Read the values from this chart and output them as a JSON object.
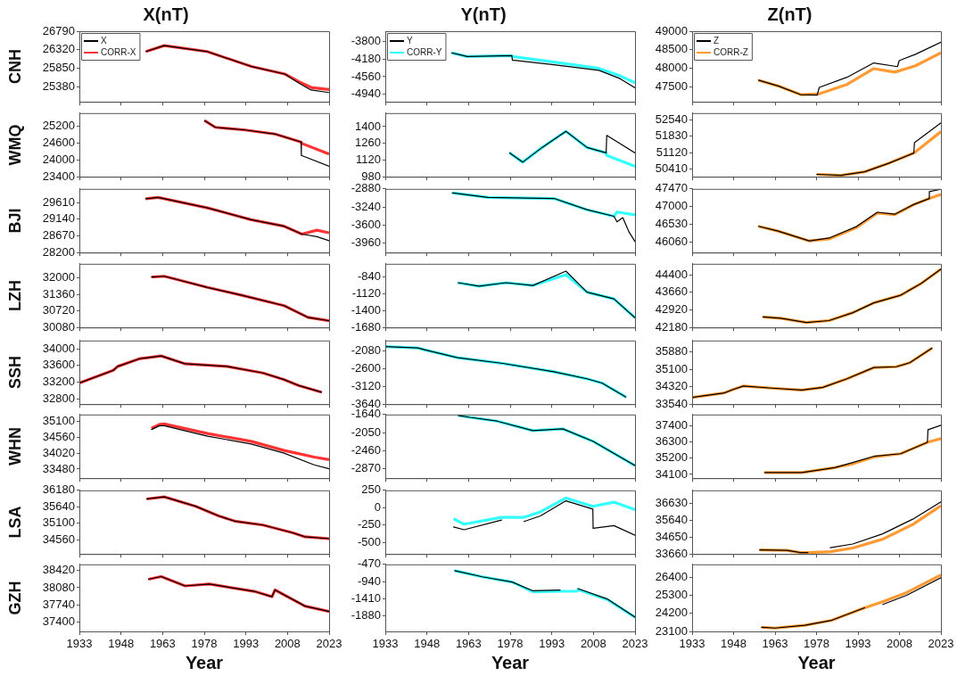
{
  "chart_data": [
    {
      "type": "line",
      "title": "X(nT)",
      "ylabel": "CNH",
      "xlim": [
        1933,
        2023
      ],
      "xticks": [
        1933,
        1948,
        1963,
        1978,
        1993,
        2008,
        2023
      ],
      "ylim": [
        25000,
        26790
      ],
      "yticks": [
        25380,
        25850,
        26320,
        26790
      ],
      "tick_labels": "y",
      "marker": "none",
      "legend": "top left",
      "series": [
        {
          "name": "X",
          "color": "#000000",
          "x": [
            1957,
            1963.6,
            1979,
            1995,
            2007,
            2012,
            2016.5,
            2023
          ],
          "values": [
            26275,
            26426,
            26275,
            25896,
            25706,
            25480,
            25300,
            25236
          ]
        },
        {
          "name": "CORR-X",
          "color": "#ff3333",
          "x": [
            1957,
            1963.6,
            1979,
            1995,
            2007,
            2012,
            2016.5,
            2023
          ],
          "values": [
            26275,
            26426,
            26275,
            25896,
            25706,
            25517,
            25365,
            25312
          ]
        }
      ]
    },
    {
      "type": "line",
      "title": "Y(nT)",
      "xlim": [
        1933,
        2023
      ],
      "xticks": [
        1933,
        1948,
        1963,
        1978,
        1993,
        2008,
        2023
      ],
      "ylim": [
        -5100,
        -3585
      ],
      "yticks": [
        -4940,
        -4560,
        -4180,
        -3800
      ],
      "tick_labels": "y",
      "marker": "none",
      "legend": "top left",
      "series": [
        {
          "name": "Y",
          "color": "#000000",
          "x": [
            1956.9,
            1962.5,
            1978.6,
            1978.8,
            1993.8,
            2010,
            2017.6,
            2023
          ],
          "values": [
            -4049,
            -4127,
            -4109,
            -4204,
            -4305,
            -4424,
            -4602,
            -4798
          ]
        },
        {
          "name": "CORR-Y",
          "color": "#33ffff",
          "x": [
            1956.9,
            1962.5,
            1978.6,
            1978.8,
            1993.8,
            2010,
            2017.6,
            2023
          ],
          "values": [
            -4049,
            -4127,
            -4109,
            -4127,
            -4246,
            -4382,
            -4543,
            -4691
          ]
        }
      ]
    },
    {
      "type": "line",
      "title": "Z(nT)",
      "xlim": [
        1933,
        2023
      ],
      "xticks": [
        1933,
        1948,
        1963,
        1978,
        1993,
        2008,
        2023
      ],
      "ylim": [
        47095,
        49000
      ],
      "yticks": [
        47500,
        48000,
        48500,
        49000
      ],
      "tick_labels": "y",
      "marker": "none",
      "legend": "top left",
      "series": [
        {
          "name": "Z",
          "color": "#000000",
          "x": [
            1957,
            1964.1,
            1972.2,
            1978.2,
            1979,
            1989,
            1998.7,
            2007.3,
            2007.9,
            2013.8,
            2023
          ],
          "values": [
            47679,
            47524,
            47291,
            47275,
            47485,
            47757,
            48145,
            48044,
            48207,
            48378,
            48705
          ]
        },
        {
          "name": "CORR-Z",
          "color": "#ff9933",
          "x": [
            1957,
            1964.1,
            1972.2,
            1978.7,
            1989,
            1998.7,
            2006.3,
            2013.8,
            2023
          ],
          "values": [
            47679,
            47524,
            47291,
            47306,
            47563,
            47990,
            47897,
            48068,
            48417
          ]
        }
      ]
    },
    {
      "type": "line",
      "ylabel": "WMQ",
      "xlim": [
        1933,
        2023
      ],
      "xticks": [
        1933,
        1948,
        1963,
        1978,
        1993,
        2008,
        2023
      ],
      "ylim": [
        23400,
        25680
      ],
      "yticks": [
        23400,
        24000,
        24600,
        25200
      ],
      "tick_labels": "y",
      "marker": "none",
      "series": [
        {
          "color": "#000000",
          "x": [
            1978.1,
            1982,
            1992.7,
            2003.5,
            2012.9,
            2013,
            2023
          ],
          "values": [
            25411,
            25171,
            25075,
            24930,
            24643,
            24163,
            23779
          ]
        },
        {
          "color": "#ff3333",
          "x": [
            1978.1,
            1982,
            1992.7,
            2003.5,
            2012.9,
            2013,
            2023
          ],
          "values": [
            25411,
            25171,
            25075,
            24930,
            24643,
            24600,
            24211
          ]
        }
      ]
    },
    {
      "type": "line",
      "xlim": [
        1933,
        2023
      ],
      "xticks": [
        1933,
        1948,
        1963,
        1978,
        1993,
        2008,
        2023
      ],
      "ylim": [
        980,
        1513
      ],
      "yticks": [
        980,
        1120,
        1260,
        1400
      ],
      "tick_labels": "y",
      "marker": "none",
      "series": [
        {
          "color": "#000000",
          "x": [
            1977.8,
            1982.5,
            1989.5,
            1998.1,
            2005.7,
            2012.6,
            2012.8,
            2023
          ],
          "values": [
            1180,
            1102,
            1225,
            1360,
            1225,
            1180,
            1326,
            1180
          ]
        },
        {
          "color": "#33ffff",
          "x": [
            1977.8,
            1982.5,
            1989.5,
            1998.1,
            2005.7,
            2012.6,
            2012.8,
            2023
          ],
          "values": [
            1180,
            1102,
            1225,
            1360,
            1225,
            1180,
            1158,
            1068
          ]
        }
      ]
    },
    {
      "type": "line",
      "xlim": [
        1933,
        2023
      ],
      "xticks": [
        1933,
        1948,
        1963,
        1978,
        1993,
        2008,
        2023
      ],
      "ylim": [
        50070,
        52845
      ],
      "yticks": [
        50410,
        51120,
        51830,
        52540
      ],
      "tick_labels": "y",
      "marker": "none",
      "series": [
        {
          "color": "#000000",
          "x": [
            1978.1,
            1986.8,
            1995.4,
            2004.1,
            2013.2,
            2013.4,
            2023
          ],
          "values": [
            50175,
            50130,
            50287,
            50657,
            51105,
            51554,
            52417
          ]
        },
        {
          "color": "#ff9933",
          "x": [
            1978.1,
            1986.8,
            1995.4,
            2004.1,
            2013.2,
            2013.4,
            2023
          ],
          "values": [
            50175,
            50130,
            50287,
            50657,
            51105,
            51120,
            52036
          ]
        }
      ]
    },
    {
      "type": "line",
      "ylabel": "BJI",
      "xlim": [
        1933,
        2023
      ],
      "xticks": [
        1933,
        1948,
        1963,
        1978,
        1993,
        2008,
        2023
      ],
      "ylim": [
        28200,
        30000
      ],
      "yticks": [
        28200,
        28670,
        29140,
        29610
      ],
      "tick_labels": "y",
      "marker": "none",
      "series": [
        {
          "color": "#000000",
          "x": [
            1956.9,
            1961.4,
            1979.2,
            1994.9,
            2006.8,
            2013.2,
            2018.6,
            2023
          ],
          "values": [
            29721,
            29758,
            29462,
            29129,
            28944,
            28722,
            28648,
            28537
          ]
        },
        {
          "color": "#ff3333",
          "x": [
            1956.9,
            1961.4,
            1979.2,
            1994.9,
            2006.8,
            2013.2,
            2018.6,
            2023
          ],
          "values": [
            29721,
            29758,
            29462,
            29129,
            28944,
            28722,
            28833,
            28759
          ]
        }
      ]
    },
    {
      "type": "line",
      "xlim": [
        1933,
        2023
      ],
      "xticks": [
        1933,
        1948,
        1963,
        1978,
        1993,
        2008,
        2023
      ],
      "ylim": [
        -4150,
        -2880
      ],
      "yticks": [
        -3960,
        -3600,
        -3240,
        -2880
      ],
      "tick_labels": "y",
      "marker": "none",
      "series": [
        {
          "color": "#000000",
          "x": [
            1957.1,
            1970,
            1993.8,
            2005.7,
            2015.4,
            2016.5,
            2018.6,
            2020.8,
            2023
          ],
          "values": [
            -2959,
            -3049,
            -3071,
            -3296,
            -3426,
            -3538,
            -3454,
            -3735,
            -3932
          ]
        },
        {
          "color": "#33ffff",
          "x": [
            1957.1,
            1970,
            1993.8,
            2005.7,
            2015.4,
            2016.5,
            2018.6,
            2020.8,
            2023
          ],
          "values": [
            -2959,
            -3049,
            -3071,
            -3296,
            -3426,
            -3341,
            -3360,
            -3380,
            -3398
          ]
        }
      ]
    },
    {
      "type": "line",
      "xlim": [
        1933,
        2023
      ],
      "xticks": [
        1933,
        1948,
        1963,
        1978,
        1993,
        2008,
        2023
      ],
      "ylim": [
        45790,
        47470
      ],
      "yticks": [
        46060,
        46530,
        47000,
        47470
      ],
      "tick_labels": "y",
      "marker": "none",
      "series": [
        {
          "color": "#000000",
          "x": [
            1957,
            1964.1,
            1975.4,
            1982.5,
            1992.2,
            2000,
            2006.3,
            2013.3,
            2018.6,
            2018.8,
            2023
          ],
          "values": [
            46483,
            46357,
            46097,
            46172,
            46468,
            46854,
            46802,
            47062,
            47210,
            47396,
            47460
          ]
        },
        {
          "color": "#ff9933",
          "x": [
            1957,
            1964.1,
            1975.4,
            1982.5,
            1992.2,
            2000,
            2006.3,
            2013.3,
            2018.6,
            2023
          ],
          "values": [
            46483,
            46357,
            46097,
            46150,
            46440,
            46830,
            46790,
            47062,
            47210,
            47322
          ]
        }
      ]
    },
    {
      "type": "line",
      "ylabel": "LZH",
      "xlim": [
        1933,
        2023
      ],
      "xticks": [
        1933,
        1948,
        1963,
        1978,
        1993,
        2008,
        2023
      ],
      "ylim": [
        30080,
        32540
      ],
      "yticks": [
        30080,
        30720,
        31360,
        32000
      ],
      "tick_labels": "y",
      "marker": "none",
      "series": [
        {
          "color": "#000000",
          "x": [
            1959,
            1963.6,
            1979.2,
            1991.6,
            2006.8,
            2015.4,
            2023
          ],
          "values": [
            32030,
            32060,
            31627,
            31325,
            30921,
            30468,
            30337
          ]
        },
        {
          "color": "#ff3333",
          "x": [
            1959,
            1963.6,
            1979.2,
            1991.6,
            2006.8,
            2015.4,
            2023
          ],
          "values": [
            32030,
            32060,
            31627,
            31325,
            30921,
            30468,
            30337
          ]
        }
      ]
    },
    {
      "type": "line",
      "xlim": [
        1933,
        2023
      ],
      "xticks": [
        1933,
        1948,
        1963,
        1978,
        1993,
        2008,
        2023
      ],
      "ylim": [
        -1680,
        -630
      ],
      "yticks": [
        -1680,
        -1400,
        -1120,
        -840
      ],
      "tick_labels": "y",
      "marker": "none",
      "series": [
        {
          "color": "#000000",
          "x": [
            1959.2,
            1966.8,
            1976.5,
            1986.2,
            1998.1,
            2005.7,
            2015.4,
            2023
          ],
          "values": [
            -942,
            -1000,
            -942,
            -987,
            -751,
            -1098,
            -1209,
            -1519
          ]
        },
        {
          "color": "#33ffff",
          "x": [
            1959.2,
            1966.8,
            1976.5,
            1986.2,
            1998.1,
            2005.7,
            2015.4,
            2023
          ],
          "values": [
            -942,
            -1000,
            -942,
            -987,
            -809,
            -1098,
            -1209,
            -1519
          ]
        }
      ]
    },
    {
      "type": "line",
      "xlim": [
        1933,
        2023
      ],
      "xticks": [
        1933,
        1948,
        1963,
        1978,
        1993,
        2008,
        2023
      ],
      "ylim": [
        42180,
        44860
      ],
      "yticks": [
        42180,
        42920,
        43660,
        44400
      ],
      "tick_labels": "y",
      "marker": "none",
      "series": [
        {
          "color": "#000000",
          "x": [
            1958.6,
            1965.1,
            1974.3,
            1982.5,
            1991.1,
            1998.7,
            2008.4,
            2016,
            2023
          ],
          "values": [
            42624,
            42565,
            42387,
            42470,
            42802,
            43216,
            43536,
            44045,
            44637
          ]
        },
        {
          "color": "#ff9933",
          "x": [
            1958.6,
            1965.1,
            1974.3,
            1982.5,
            1991.1,
            1998.7,
            2008.4,
            2016,
            2023
          ],
          "values": [
            42624,
            42565,
            42387,
            42470,
            42802,
            43216,
            43536,
            44045,
            44637
          ]
        }
      ]
    },
    {
      "type": "line",
      "ylabel": "SSH",
      "xlim": [
        1933,
        2023
      ],
      "xticks": [
        1933,
        1948,
        1963,
        1978,
        1993,
        2008,
        2023
      ],
      "ylim": [
        32670,
        34200
      ],
      "yticks": [
        32800,
        33200,
        33600,
        34000
      ],
      "tick_labels": "y",
      "marker": "none",
      "series": [
        {
          "color": "#000000",
          "x": [
            1933,
            1945.2,
            1946.8,
            1954.9,
            1962.5,
            1971.1,
            1986.2,
            1999.2,
            2006.8,
            2012.2,
            2020.3
          ],
          "values": [
            33178,
            33482,
            33577,
            33766,
            33829,
            33640,
            33577,
            33419,
            33260,
            33115,
            32957
          ]
        },
        {
          "color": "#ff3333",
          "x": [
            1933,
            1945.2,
            1946.8,
            1954.9,
            1962.5,
            1971.1,
            1986.2,
            1999.2,
            2006.8,
            2012.2,
            2020.3
          ],
          "values": [
            33178,
            33482,
            33577,
            33766,
            33829,
            33640,
            33577,
            33419,
            33260,
            33115,
            32957
          ]
        }
      ]
    },
    {
      "type": "line",
      "xlim": [
        1933,
        2023
      ],
      "xticks": [
        1933,
        1948,
        1963,
        1978,
        1993,
        2008,
        2023
      ],
      "ylim": [
        -3640,
        -1780
      ],
      "yticks": [
        -3640,
        -3120,
        -2600,
        -2080
      ],
      "tick_labels": "y",
      "marker": "none",
      "series": [
        {
          "color": "#000000",
          "x": [
            1933,
            1944.7,
            1947.4,
            1959.2,
            1975.4,
            1993.8,
            2005.7,
            2011.1,
            2019.7
          ],
          "values": [
            -1957,
            -1998,
            -2055,
            -2285,
            -2449,
            -2694,
            -2899,
            -3022,
            -3431
          ]
        },
        {
          "color": "#33ffff",
          "x": [
            1933,
            1944.7,
            1947.4,
            1959.2,
            1975.4,
            1993.8,
            2005.7,
            2011.1,
            2019.7
          ],
          "values": [
            -1957,
            -1998,
            -2055,
            -2285,
            -2449,
            -2694,
            -2899,
            -3022,
            -3431
          ]
        }
      ]
    },
    {
      "type": "line",
      "xlim": [
        1933,
        2023
      ],
      "xticks": [
        1933,
        1948,
        1963,
        1978,
        1993,
        2008,
        2023
      ],
      "ylim": [
        33540,
        36400
      ],
      "yticks": [
        33540,
        34320,
        35100,
        35880
      ],
      "tick_labels": "y",
      "marker": "none",
      "series": [
        {
          "color": "#000000",
          "x": [
            1933,
            1944.6,
            1947.8,
            1951.6,
            1961.9,
            1972.7,
            1980.3,
            1989,
            1998.7,
            2006.8,
            2011.7,
            2019.8
          ],
          "values": [
            33840,
            34044,
            34200,
            34356,
            34260,
            34176,
            34296,
            34680,
            35184,
            35220,
            35400,
            36060
          ]
        },
        {
          "color": "#ff9933",
          "x": [
            1933,
            1944.6,
            1947.8,
            1951.6,
            1961.9,
            1972.7,
            1980.3,
            1989,
            1998.7,
            2006.8,
            2011.7,
            2019.8
          ],
          "values": [
            33840,
            34044,
            34200,
            34356,
            34260,
            34176,
            34296,
            34680,
            35184,
            35220,
            35400,
            36060
          ]
        }
      ]
    },
    {
      "type": "line",
      "ylabel": "WHN",
      "xlim": [
        1933,
        2023
      ],
      "xticks": [
        1933,
        1948,
        1963,
        1978,
        1993,
        2008,
        2023
      ],
      "ylim": [
        33170,
        35330
      ],
      "yticks": [
        33480,
        34020,
        34560,
        35100
      ],
      "tick_labels": "y",
      "marker": "none",
      "series": [
        {
          "color": "#000000",
          "x": [
            1959,
            1961.9,
            1963.6,
            1979.2,
            1994.9,
            2006.8,
            2017.6,
            2023
          ],
          "values": [
            34820,
            34950,
            34950,
            34596,
            34330,
            34020,
            33622,
            33489
          ]
        },
        {
          "color": "#ff3333",
          "x": [
            1959,
            1961.9,
            1963.6,
            1979.2,
            1994.9,
            2006.8,
            2017.6,
            2023
          ],
          "values": [
            34861,
            34994,
            35011,
            34684,
            34419,
            34109,
            33888,
            33799
          ]
        }
      ]
    },
    {
      "type": "line",
      "xlim": [
        1933,
        2023
      ],
      "xticks": [
        1933,
        1948,
        1963,
        1978,
        1993,
        2008,
        2023
      ],
      "ylim": [
        -3085,
        -1640
      ],
      "yticks": [
        -2870,
        -2460,
        -2050,
        -1640
      ],
      "tick_labels": "y",
      "marker": "none",
      "series": [
        {
          "color": "#000000",
          "x": [
            1959.2,
            1963.6,
            1973.3,
            1986.2,
            1997,
            2007.8,
            2023
          ],
          "values": [
            -1660,
            -1705,
            -1790,
            -2005,
            -1966,
            -2245,
            -2799
          ]
        },
        {
          "color": "#33ffff",
          "x": [
            1959.2,
            1963.6,
            1973.3,
            1986.2,
            1997,
            2007.8,
            2023
          ],
          "values": [
            -1660,
            -1705,
            -1790,
            -2005,
            -1966,
            -2245,
            -2799
          ]
        }
      ]
    },
    {
      "type": "line",
      "xlim": [
        1933,
        2023
      ],
      "xticks": [
        1933,
        1948,
        1963,
        1978,
        1993,
        2008,
        2023
      ],
      "ylim": [
        33840,
        38185
      ],
      "yticks": [
        34100,
        35200,
        36300,
        37400
      ],
      "tick_labels": "y",
      "marker": "none",
      "series": [
        {
          "color": "#000000",
          "x": [
            1959.2,
            1972.7,
            1984.6,
            1991.1,
            1998.7,
            2008.4,
            2018.1,
            2018.3,
            2023
          ],
          "values": [
            34220,
            34220,
            34564,
            34907,
            35330,
            35509,
            36283,
            37142,
            37452
          ]
        },
        {
          "color": "#ff9933",
          "x": [
            1959.2,
            1972.7,
            1984.6,
            1991.1,
            1998.7,
            2008.4,
            2018.1,
            2018.3,
            2023
          ],
          "values": [
            34220,
            34220,
            34564,
            34822,
            35286,
            35509,
            36283,
            36300,
            36541
          ]
        }
      ]
    },
    {
      "type": "line",
      "ylabel": "LSA",
      "xlim": [
        1933,
        2023
      ],
      "xticks": [
        1933,
        1948,
        1963,
        1978,
        1993,
        2008,
        2023
      ],
      "ylim": [
        34090,
        36180
      ],
      "yticks": [
        34560,
        35100,
        35640,
        36180
      ],
      "tick_labels": "y",
      "marker": "none",
      "series": [
        {
          "color": "#000000",
          "x": [
            1957.3,
            1963.6,
            1974.9,
            1983.2,
            1989,
            1999.2,
            2010,
            2014.3,
            2023
          ],
          "values": [
            35897,
            35966,
            35657,
            35340,
            35169,
            35040,
            34783,
            34654,
            34594
          ]
        },
        {
          "color": "#ff3333",
          "x": [
            1957.3,
            1963.6,
            1974.9,
            1983.2,
            1989,
            1999.2,
            2010,
            2014.3,
            2023
          ],
          "values": [
            35897,
            35966,
            35657,
            35340,
            35169,
            35040,
            34783,
            34654,
            34594
          ]
        }
      ]
    },
    {
      "type": "line",
      "xlim": [
        1933,
        2023
      ],
      "xticks": [
        1933,
        1948,
        1963,
        1978,
        1993,
        2008,
        2023
      ],
      "ylim": [
        -667,
        250
      ],
      "yticks": [
        -500,
        -250,
        0,
        250
      ],
      "tick_labels": "y",
      "marker": "none",
      "series": [
        {
          "color": "#000000",
          "x": [
            1957.6,
            1961.4,
            1974.9,
            1979,
            1983,
            1988.9,
            1998.1,
            2007.8,
            2007.9,
            2015.4,
            2023
          ],
          "values": [
            -278,
            -318,
            -179,
            null,
            -199,
            -119,
            99,
            -20,
            -298,
            -258,
            -397
          ]
        },
        {
          "color": "#33ffff",
          "x": [
            1957.6,
            1961.4,
            1974.9,
            1983,
            1988.9,
            1998.1,
            2007.8,
            2015.4,
            2023
          ],
          "values": [
            -159,
            -238,
            -139,
            -139,
            -60,
            139,
            20,
            79,
            -28
          ]
        }
      ]
    },
    {
      "type": "line",
      "xlim": [
        1933,
        2023
      ],
      "xticks": [
        1933,
        1948,
        1963,
        1978,
        1993,
        2008,
        2023
      ],
      "ylim": [
        33660,
        37380
      ],
      "yticks": [
        33660,
        34650,
        35640,
        36630
      ],
      "tick_labels": "y",
      "marker": "none",
      "series": [
        {
          "color": "#000000",
          "x": [
            1957.4,
            1967.3,
            1972.2,
            1974.9,
            1979,
            1983,
            1991.1,
            2001.9,
            2012.8,
            2023
          ],
          "values": [
            33902,
            33871,
            33746,
            33746,
            null,
            34027,
            34245,
            34837,
            35695,
            36708
          ]
        },
        {
          "color": "#ff9933",
          "x": [
            1957.4,
            1967.3,
            1972.2,
            1974.9,
            1983,
            1991.1,
            2001.9,
            2012.8,
            2023
          ],
          "values": [
            33902,
            33871,
            33746,
            33746,
            33793,
            34011,
            34525,
            35383,
            36474
          ]
        }
      ]
    },
    {
      "type": "line",
      "ylabel": "GZH",
      "xlabel": "Year",
      "xlim": [
        1933,
        2023
      ],
      "xticks": [
        1933,
        1948,
        1963,
        1978,
        1993,
        2008,
        2023
      ],
      "ylim": [
        37210,
        38545
      ],
      "yticks": [
        37400,
        37740,
        38080,
        38420
      ],
      "marker": "none",
      "series": [
        {
          "color": "#000000",
          "x": [
            1957.9,
            1962.5,
            1971.1,
            1979.8,
            1996,
            2002.4,
            2003.5,
            2014.3,
            2023
          ],
          "values": [
            38249,
            38302,
            38115,
            38152,
            38008,
            37901,
            38035,
            37714,
            37607
          ]
        },
        {
          "color": "#ff3333",
          "x": [
            1957.9,
            1962.5,
            1971.1,
            1979.8,
            1996,
            2002.4,
            2003.5,
            2014.3,
            2023
          ],
          "values": [
            38249,
            38302,
            38115,
            38152,
            38008,
            37901,
            38035,
            37714,
            37607
          ]
        }
      ]
    },
    {
      "type": "line",
      "xlabel": "Year",
      "xlim": [
        1933,
        2023
      ],
      "xticks": [
        1933,
        1948,
        1963,
        1978,
        1993,
        2008,
        2023
      ],
      "ylim": [
        -2305,
        -470
      ],
      "yticks": [
        -1880,
        -1410,
        -940,
        -470
      ],
      "marker": "none",
      "series": [
        {
          "color": "#000000",
          "x": [
            1958,
            1967.9,
            1978.7,
            1986.2,
            1996,
            1999,
            2002.4,
            2013.2,
            2023
          ],
          "values": [
            -644,
            -810,
            -954,
            -1193,
            -1171,
            null,
            -1135,
            -1424,
            -1916
          ]
        },
        {
          "color": "#33ffff",
          "x": [
            1958,
            1967.9,
            1978.7,
            1986.2,
            1996,
            2002,
            2002.4,
            2013.2,
            2023
          ],
          "values": [
            -644,
            -810,
            -954,
            -1222,
            -1207,
            -1207,
            -1160,
            -1440,
            -1916
          ]
        }
      ]
    },
    {
      "type": "line",
      "xlabel": "Year",
      "xlim": [
        1933,
        2023
      ],
      "xticks": [
        1933,
        1948,
        1963,
        1978,
        1993,
        2008,
        2023
      ],
      "ylim": [
        23100,
        27185
      ],
      "yticks": [
        23100,
        24200,
        25300,
        26400
      ],
      "marker": "none",
      "series": [
        {
          "color": "#000000",
          "x": [
            1958.1,
            1963,
            1973.8,
            1983.5,
            1995.4,
            1999,
            2002,
            2010.6,
            2023
          ],
          "values": [
            23354,
            23303,
            23473,
            23777,
            24539,
            null,
            24742,
            25300,
            26366
          ]
        },
        {
          "color": "#ff9933",
          "x": [
            1958.1,
            1963,
            1973.8,
            1983.5,
            1995.4,
            2001.9,
            2010.6,
            2023
          ],
          "values": [
            23354,
            23303,
            23473,
            23777,
            24539,
            24911,
            25469,
            26535
          ]
        }
      ]
    }
  ]
}
